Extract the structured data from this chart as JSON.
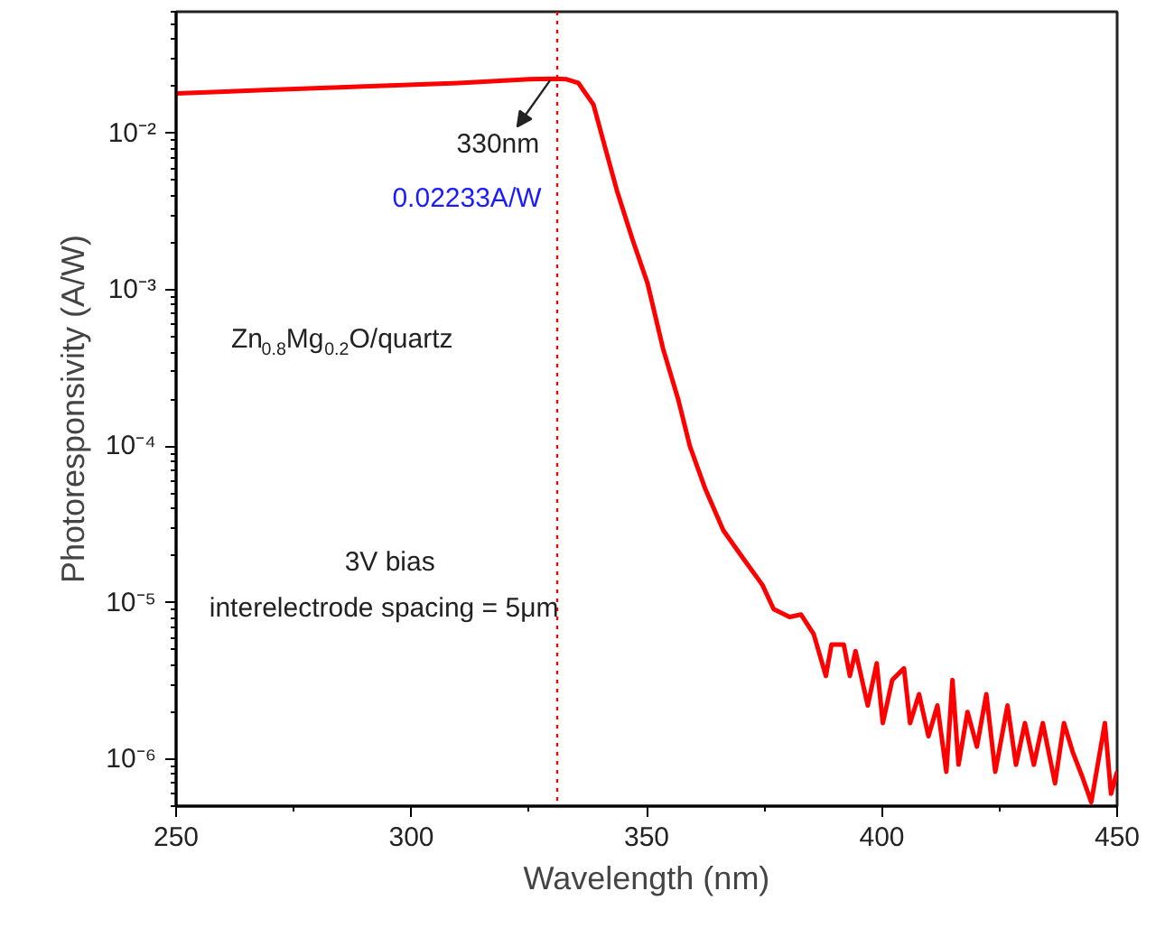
{
  "chart_data": {
    "type": "line",
    "xlabel": "Wavelength (nm)",
    "ylabel": "Photoresponsivity (A/W)",
    "log": "y",
    "grid": false,
    "marker": "none",
    "line_style": "solid",
    "xlim": [
      250,
      450
    ],
    "ylim": [
      5e-07,
      0.06
    ],
    "xticks": [
      250,
      {
        "value": 275,
        "label": null
      },
      300,
      {
        "value": 325,
        "label": null
      },
      350,
      {
        "value": 375,
        "label": null
      },
      400,
      {
        "value": 425,
        "label": null
      },
      450
    ],
    "yticks": [
      {
        "value": 1e-06,
        "label": "10⁻⁶"
      },
      {
        "value": 1e-05,
        "label": "10⁻⁵"
      },
      {
        "value": 0.0001,
        "label": "10⁻⁴"
      },
      {
        "value": 0.001,
        "label": "10⁻³"
      },
      {
        "value": 0.01,
        "label": "10⁻²"
      }
    ],
    "ref_lines": [
      {
        "axis": "x",
        "value": 331,
        "color": "#ff0000",
        "line_style": "dotted"
      }
    ],
    "annotations": [
      {
        "text": "330nm",
        "x": 330,
        "y": 0.02233
      },
      "0.02233A/W",
      "Zn$_{0.8}$Mg$_{0.2}$O/quartz",
      "3V bias",
      "interelectrode spacing = 5μm"
    ],
    "series": [
      {
        "color": "#ff0000",
        "x": [
          250,
          270,
          290,
          310,
          325,
          330,
          333,
          335.5,
          338.7,
          341.3,
          343.8,
          347.0,
          350.2,
          353.5,
          356.7,
          359.2,
          362.4,
          366.3,
          370.1,
          374.6,
          377.0,
          380.4,
          382.8,
          385.5,
          388.1,
          389.3,
          391.9,
          393.2,
          394.4,
          397.0,
          398.9,
          400.2,
          402.2,
          404.7,
          406.0,
          407.9,
          409.9,
          411.8,
          413.7,
          415.0,
          416.3,
          418.2,
          420.2,
          422.2,
          424.1,
          426.7,
          428.5,
          430.4,
          432.3,
          434.2,
          436.8,
          438.7,
          440.6,
          442.6,
          444.5,
          447.4,
          448.7,
          450
        ],
        "values": [
          0.018,
          0.019,
          0.02,
          0.021,
          0.0222,
          0.02233,
          0.0222,
          0.021,
          0.0153,
          0.0079,
          0.0042,
          0.0021,
          0.0011,
          0.00042,
          0.0002,
          0.0001,
          5.4e-05,
          2.9e-05,
          2e-05,
          1.3e-05,
          9.1e-06,
          8.1e-06,
          8.4e-06,
          6.3e-06,
          3.4e-06,
          5.4e-06,
          5.4e-06,
          3.4e-06,
          4.9e-06,
          2.2e-06,
          4.1e-06,
          1.7e-06,
          3.2e-06,
          3.8e-06,
          1.7e-06,
          2.6e-06,
          1.4e-06,
          2.2e-06,
          8.3e-07,
          3.2e-06,
          9.2e-07,
          2e-06,
          1.2e-06,
          2.6e-06,
          8.3e-07,
          2.2e-06,
          9.2e-07,
          1.7e-06,
          9.2e-07,
          1.7e-06,
          7e-07,
          1.7e-06,
          1.1e-06,
          7.7e-07,
          5.3e-07,
          1.7e-06,
          6e-07,
          8.3e-07
        ]
      }
    ]
  }
}
